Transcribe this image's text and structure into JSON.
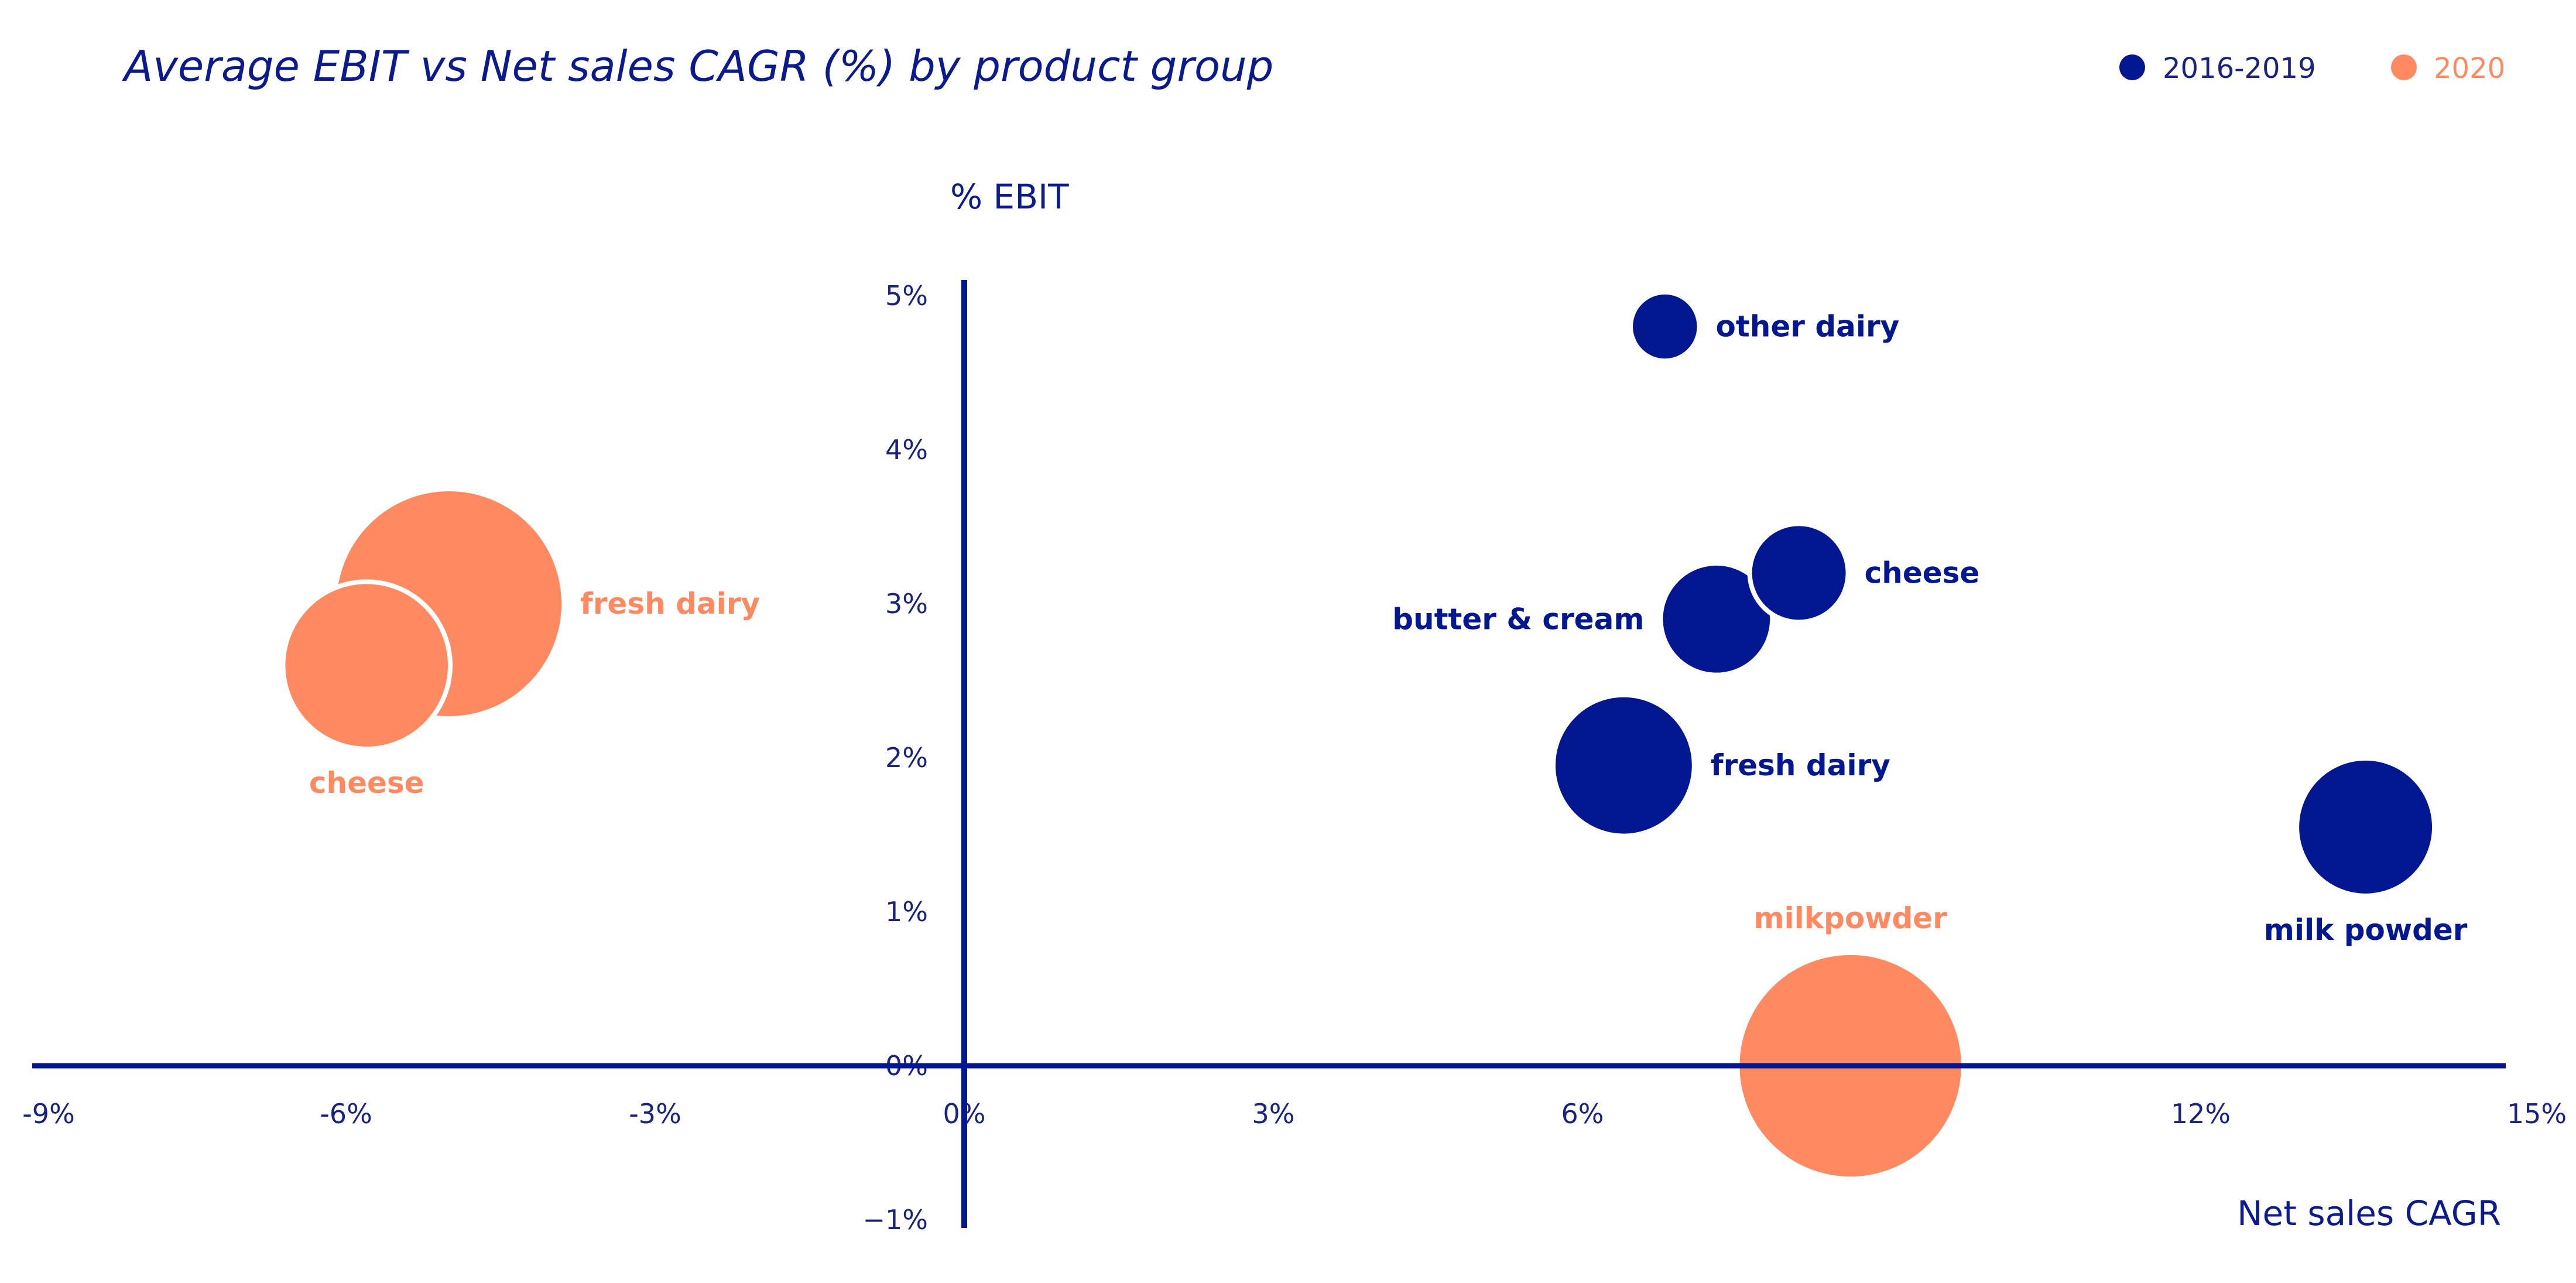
{
  "colors": {
    "navy": "#021790",
    "orange": "#FF8A62",
    "axis": "#021790",
    "text": "#0b1a8c"
  },
  "chart_data": {
    "type": "scatter",
    "subtype": "bubble",
    "title": "Average EBIT vs Net sales CAGR (%) by product group",
    "xlabel": "Net sales CAGR",
    "ylabel": "% EBIT",
    "xlim": [
      -9,
      15
    ],
    "ylim": [
      -1,
      5
    ],
    "x_ticks": [
      -9,
      -6,
      -3,
      0,
      3,
      6,
      9,
      12,
      15
    ],
    "x_tick_labels": [
      "-9%",
      "-6%",
      "-3%",
      "0%",
      "3%",
      "6%",
      "9%",
      "12%",
      "15%"
    ],
    "y_ticks": [
      5,
      4,
      3,
      2,
      1,
      0,
      -1
    ],
    "y_tick_labels": [
      "5%",
      "4%",
      "3%",
      "2%",
      "1%",
      "0%",
      "−1%"
    ],
    "grid": false,
    "legend_position": "top-right",
    "legend": [
      {
        "name": "2016-2019",
        "color_key": "navy"
      },
      {
        "name": "2020",
        "color_key": "orange"
      }
    ],
    "size_unit": "relative bubble area",
    "series": [
      {
        "name": "2016-2019",
        "color_key": "navy",
        "points": [
          {
            "label": "other dairy",
            "x": 6.8,
            "y": 4.8,
            "size": 4.4,
            "label_pos": "right"
          },
          {
            "label": "cheese",
            "x": 8.1,
            "y": 3.2,
            "size": 9.0,
            "label_pos": "right"
          },
          {
            "label": "butter & cream",
            "x": 7.3,
            "y": 2.9,
            "size": 11.6,
            "label_pos": "left"
          },
          {
            "label": "fresh dairy",
            "x": 6.4,
            "y": 1.95,
            "size": 18.5,
            "label_pos": "right"
          },
          {
            "label": "milk powder",
            "x": 13.6,
            "y": 1.55,
            "size": 17.6,
            "label_pos": "below"
          }
        ]
      },
      {
        "name": "2020",
        "color_key": "orange",
        "points": [
          {
            "label": "fresh dairy",
            "x": -5.0,
            "y": 3.0,
            "size": 49.0,
            "label_pos": "right"
          },
          {
            "label": "cheese",
            "x": -5.8,
            "y": 2.6,
            "size": 26.0,
            "label_pos": "below"
          },
          {
            "label": "milkpowder",
            "x": 8.6,
            "y": 0.0,
            "size": 47.6,
            "label_pos": "above"
          }
        ]
      }
    ]
  }
}
